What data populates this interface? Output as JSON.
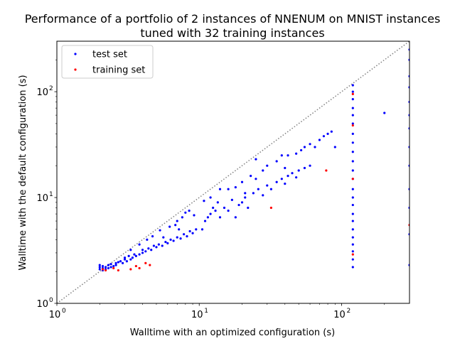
{
  "chart_data": {
    "type": "scatter",
    "title_line1": "Performance of a portfolio of 2 instances of NNENUM on MNIST instances",
    "title_line2": "tuned with 32 training instances",
    "xlabel": "Walltime with an optimized configuration (s)",
    "ylabel": "Walltime with the default configuration (s)",
    "xscale": "log",
    "yscale": "log",
    "xlim": [
      1,
      300
    ],
    "ylim": [
      1,
      300
    ],
    "x_ticks": [
      {
        "value": 1,
        "base": "10",
        "exp": "0"
      },
      {
        "value": 10,
        "base": "10",
        "exp": "1"
      },
      {
        "value": 100,
        "base": "10",
        "exp": "2"
      }
    ],
    "y_ticks": [
      {
        "value": 1,
        "base": "10",
        "exp": "0"
      },
      {
        "value": 10,
        "base": "10",
        "exp": "1"
      },
      {
        "value": 100,
        "base": "10",
        "exp": "2"
      }
    ],
    "grid": false,
    "legend_placement": "top-left",
    "diagonal": {
      "style": "dotted",
      "color": "#808080"
    },
    "series": [
      {
        "name": "test set",
        "color": "#0000ff",
        "points": [
          [
            2.0,
            2.1
          ],
          [
            2.0,
            2.2
          ],
          [
            2.0,
            2.3
          ],
          [
            2.1,
            2.05
          ],
          [
            2.1,
            2.15
          ],
          [
            2.1,
            2.25
          ],
          [
            2.2,
            2.1
          ],
          [
            2.2,
            2.2
          ],
          [
            2.3,
            2.15
          ],
          [
            2.3,
            2.3
          ],
          [
            2.4,
            2.2
          ],
          [
            2.4,
            2.35
          ],
          [
            2.5,
            2.25
          ],
          [
            2.6,
            2.3
          ],
          [
            2.6,
            2.4
          ],
          [
            2.7,
            2.45
          ],
          [
            2.8,
            2.5
          ],
          [
            2.9,
            2.4
          ],
          [
            3.0,
            2.6
          ],
          [
            3.0,
            2.7
          ],
          [
            3.1,
            2.5
          ],
          [
            3.2,
            2.8
          ],
          [
            3.3,
            2.6
          ],
          [
            3.4,
            2.7
          ],
          [
            3.5,
            2.9
          ],
          [
            3.6,
            2.8
          ],
          [
            3.8,
            2.9
          ],
          [
            4.0,
            3.0
          ],
          [
            4.0,
            3.2
          ],
          [
            4.2,
            3.1
          ],
          [
            4.4,
            3.3
          ],
          [
            4.6,
            3.2
          ],
          [
            4.8,
            3.5
          ],
          [
            5.0,
            3.4
          ],
          [
            5.2,
            3.6
          ],
          [
            5.5,
            3.5
          ],
          [
            5.8,
            3.8
          ],
          [
            6.0,
            3.7
          ],
          [
            6.3,
            4.0
          ],
          [
            6.6,
            3.9
          ],
          [
            7.0,
            4.2
          ],
          [
            7.4,
            4.1
          ],
          [
            7.8,
            4.5
          ],
          [
            8.2,
            4.3
          ],
          [
            8.6,
            4.8
          ],
          [
            9.0,
            4.6
          ],
          [
            9.5,
            5.0
          ],
          [
            3.3,
            3.2
          ],
          [
            3.8,
            3.6
          ],
          [
            4.3,
            4.0
          ],
          [
            4.7,
            4.3
          ],
          [
            5.3,
            4.9
          ],
          [
            6.2,
            5.3
          ],
          [
            7.0,
            6.0
          ],
          [
            7.6,
            6.5
          ],
          [
            8.0,
            7.2
          ],
          [
            8.5,
            7.5
          ],
          [
            9.2,
            6.8
          ],
          [
            6.8,
            5.5
          ],
          [
            7.2,
            5.0
          ],
          [
            5.6,
            4.2
          ],
          [
            10.5,
            5.0
          ],
          [
            11.0,
            6.0
          ],
          [
            11.5,
            6.5
          ],
          [
            12.0,
            7.0
          ],
          [
            12.5,
            8.0
          ],
          [
            13.0,
            7.5
          ],
          [
            13.5,
            9.0
          ],
          [
            14.0,
            6.5
          ],
          [
            15.0,
            8.0
          ],
          [
            16.0,
            7.5
          ],
          [
            17.0,
            9.5
          ],
          [
            18.0,
            6.5
          ],
          [
            19.0,
            8.5
          ],
          [
            20.0,
            9.0
          ],
          [
            21.0,
            10.0
          ],
          [
            22.0,
            8.0
          ],
          [
            24.0,
            11.0
          ],
          [
            26.0,
            12.0
          ],
          [
            28.0,
            10.5
          ],
          [
            30.0,
            13.0
          ],
          [
            32.0,
            12.0
          ],
          [
            35.0,
            14.0
          ],
          [
            38.0,
            15.0
          ],
          [
            40.0,
            13.5
          ],
          [
            42.0,
            16.0
          ],
          [
            45.0,
            17.0
          ],
          [
            48.0,
            15.5
          ],
          [
            50.0,
            18.0
          ],
          [
            55.0,
            19.0
          ],
          [
            60.0,
            20.0
          ],
          [
            12.0,
            10.0
          ],
          [
            14.0,
            12.0
          ],
          [
            16.0,
            12.0
          ],
          [
            20.0,
            14.0
          ],
          [
            23.0,
            16.0
          ],
          [
            25.0,
            15.0
          ],
          [
            28.0,
            18.0
          ],
          [
            30.0,
            20.0
          ],
          [
            35.0,
            22.0
          ],
          [
            38.0,
            25.0
          ],
          [
            42.0,
            25.0
          ],
          [
            48.0,
            26.0
          ],
          [
            52.0,
            28.0
          ],
          [
            55.0,
            30.0
          ],
          [
            60.0,
            32.0
          ],
          [
            65.0,
            30.0
          ],
          [
            70.0,
            35.0
          ],
          [
            75.0,
            38.0
          ],
          [
            80.0,
            40.0
          ],
          [
            85.0,
            42.0
          ],
          [
            90.0,
            30.0
          ],
          [
            25.0,
            23.0
          ],
          [
            40.0,
            19.0
          ],
          [
            18.0,
            12.5
          ],
          [
            21.0,
            11.0
          ],
          [
            10.8,
            9.3
          ],
          [
            120,
            2.2
          ],
          [
            120,
            2.6
          ],
          [
            120,
            3.1
          ],
          [
            120,
            3.6
          ],
          [
            120,
            4.2
          ],
          [
            120,
            5.0
          ],
          [
            120,
            6.0
          ],
          [
            120,
            7.0
          ],
          [
            120,
            8.5
          ],
          [
            120,
            10.0
          ],
          [
            120,
            12.0
          ],
          [
            120,
            15.0
          ],
          [
            120,
            18.0
          ],
          [
            120,
            22.0
          ],
          [
            120,
            27.0
          ],
          [
            120,
            33.0
          ],
          [
            120,
            40.0
          ],
          [
            120,
            50.0
          ],
          [
            120,
            60.0
          ],
          [
            120,
            70.0
          ],
          [
            120,
            85.0
          ],
          [
            120,
            100.0
          ],
          [
            120,
            115.0
          ],
          [
            200,
            63.0
          ],
          [
            300,
            2.3
          ],
          [
            300,
            4.5
          ],
          [
            300,
            8.0
          ],
          [
            300,
            12.0
          ],
          [
            300,
            20.0
          ],
          [
            300,
            30.0
          ],
          [
            300,
            45.0
          ],
          [
            300,
            60.0
          ],
          [
            300,
            80.0
          ],
          [
            300,
            110.0
          ],
          [
            300,
            140.0
          ],
          [
            300,
            200.0
          ],
          [
            300,
            250.0
          ]
        ]
      },
      {
        "name": "training set",
        "color": "#ff0000",
        "points": [
          [
            2.1,
            2.1
          ],
          [
            2.2,
            2.05
          ],
          [
            2.5,
            2.15
          ],
          [
            2.7,
            2.05
          ],
          [
            3.3,
            2.1
          ],
          [
            3.6,
            2.25
          ],
          [
            3.8,
            2.15
          ],
          [
            4.2,
            2.4
          ],
          [
            4.5,
            2.3
          ],
          [
            32.0,
            8.0
          ],
          [
            78.0,
            18.0
          ],
          [
            120,
            2.9
          ],
          [
            120,
            15.0
          ],
          [
            120,
            48.0
          ],
          [
            120,
            95.0
          ],
          [
            300,
            5.5
          ]
        ]
      }
    ]
  }
}
